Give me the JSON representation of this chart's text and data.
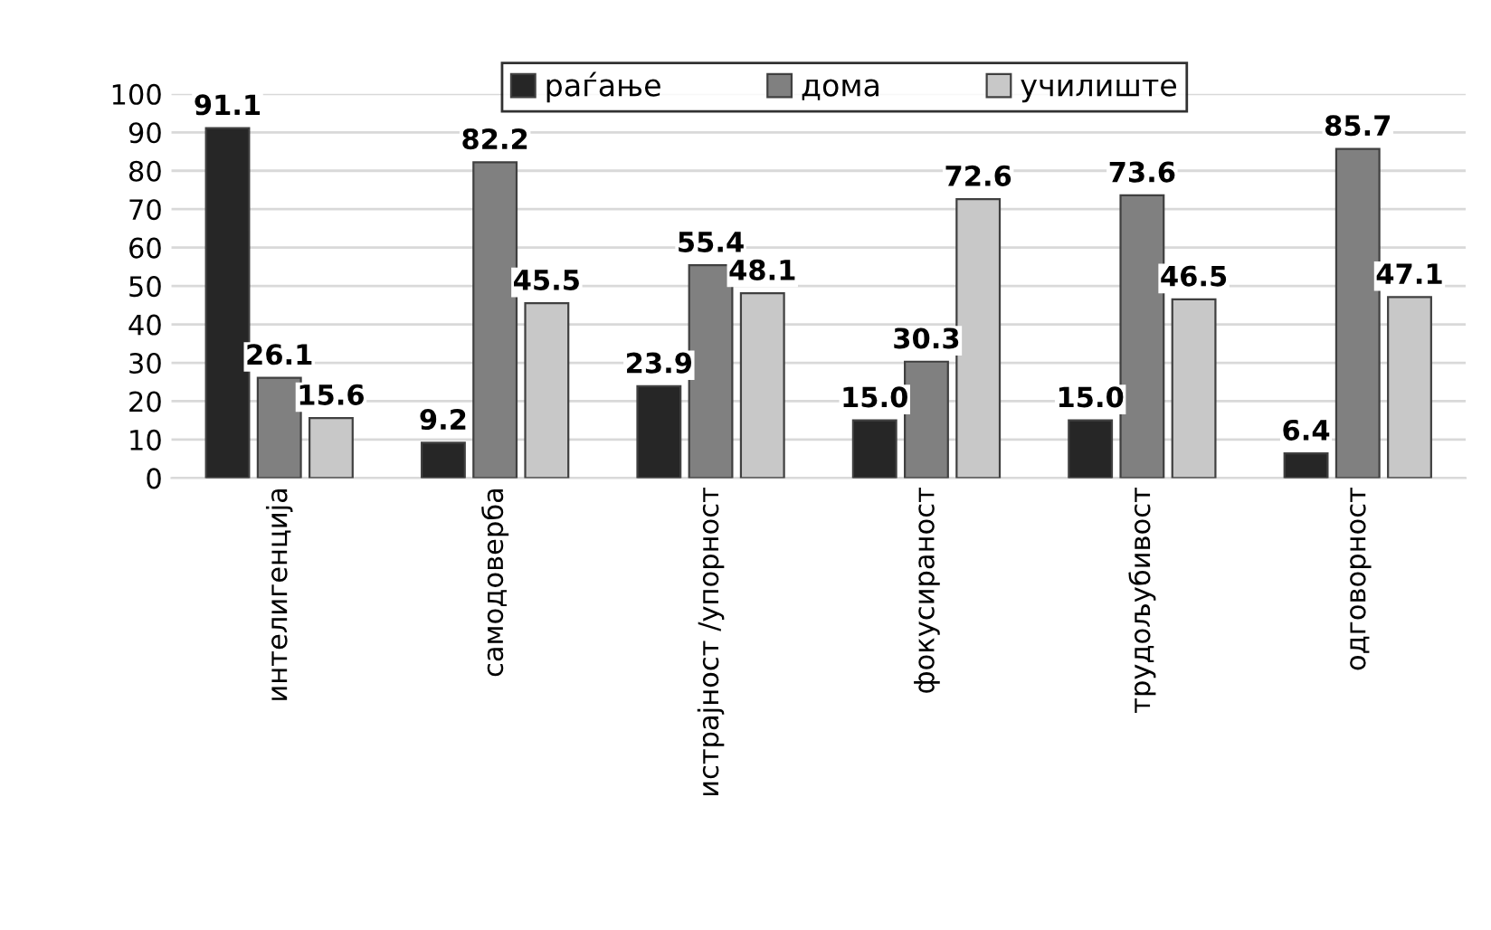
{
  "chart_data": {
    "type": "bar",
    "categories": [
      "интелигенција",
      "самодоверба",
      "истрајност /упорност",
      "фокусираност",
      "трудољубивост",
      "одговорност"
    ],
    "series": [
      {
        "name": "раѓање",
        "color": "#262626",
        "values": [
          91.1,
          9.2,
          23.9,
          15.0,
          15.0,
          6.4
        ],
        "value_labels": [
          "91.1",
          "9.2",
          "23.9",
          "15.0",
          "15.0",
          "6.4"
        ]
      },
      {
        "name": "дома",
        "color": "#808080",
        "values": [
          26.1,
          82.2,
          55.4,
          30.3,
          73.6,
          85.7
        ],
        "value_labels": [
          "26.1",
          "82.2",
          "55.4",
          "30.3",
          "73.6",
          "85.7"
        ]
      },
      {
        "name": "училиште",
        "color": "#c8c8c8",
        "values": [
          15.6,
          45.5,
          48.1,
          72.6,
          46.5,
          47.1
        ],
        "value_labels": [
          "15.6",
          "45.5",
          "48.1",
          "72.6",
          "46.5",
          "47.1"
        ]
      }
    ],
    "ylim": [
      0,
      100
    ],
    "yticks": [
      0,
      10,
      20,
      30,
      40,
      50,
      60,
      70,
      80,
      90,
      100
    ],
    "grid": "y",
    "legend": "top"
  }
}
